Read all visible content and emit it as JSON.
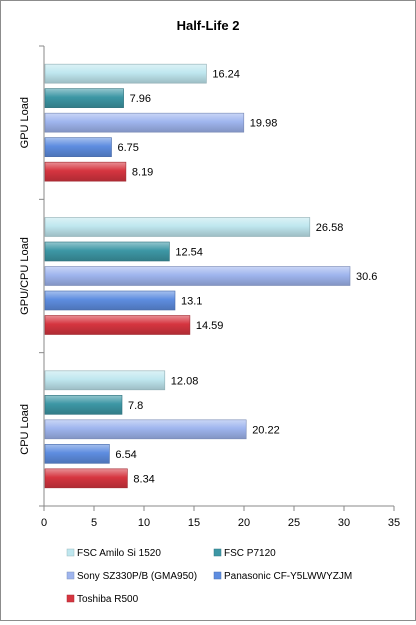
{
  "chart_data": {
    "type": "bar",
    "orientation": "horizontal",
    "title": "Half-Life 2",
    "xlabel": "",
    "ylabel": "",
    "xlim": [
      0,
      35
    ],
    "xticks": [
      0,
      5,
      10,
      15,
      20,
      25,
      30,
      35
    ],
    "grid": false,
    "legend_position": "bottom",
    "categories": [
      "GPU Load",
      "GPU/CPU Load",
      "CPU Load"
    ],
    "series": [
      {
        "name": "FSC Amilo Si 1520",
        "color": "#bfe7ef",
        "values": [
          16.24,
          26.58,
          12.08
        ],
        "labels": [
          "16.24",
          "26.58",
          "12.08"
        ]
      },
      {
        "name": "FSC P7120",
        "color": "#3d97a5",
        "values": [
          7.96,
          12.54,
          7.8
        ],
        "labels": [
          "7.96",
          "12.54",
          "7.8"
        ]
      },
      {
        "name": "Sony SZ330P/B (GMA950)",
        "color": "#9fb5ee",
        "values": [
          19.98,
          30.6,
          20.22
        ],
        "labels": [
          "19.98",
          "30.6",
          "20.22"
        ]
      },
      {
        "name": "Panasonic CF-Y5LWWYZJM",
        "color": "#5e8de0",
        "values": [
          6.75,
          13.1,
          6.54
        ],
        "labels": [
          "6.75",
          "13.1",
          "6.54"
        ]
      },
      {
        "name": "Toshiba R500",
        "color": "#d63540",
        "values": [
          8.19,
          14.59,
          8.34
        ],
        "labels": [
          "8.19",
          "14.59",
          "8.34"
        ]
      }
    ]
  }
}
